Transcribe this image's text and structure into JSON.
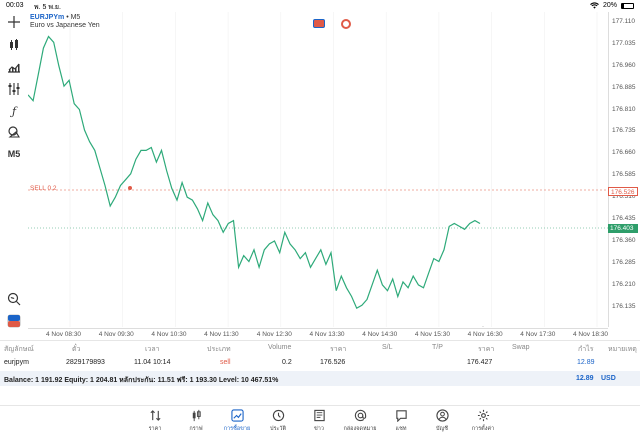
{
  "status_bar": {
    "time": "00:03",
    "date": "พ. 5 พ.ย.",
    "battery": "20%",
    "battery_level": 0.2
  },
  "chart": {
    "symbol": "EURJPYm",
    "timeframe_sep": "•",
    "timeframe": "M5",
    "description": "Euro vs Japanese Yen",
    "sell_label": "SELL 0.2",
    "sell_price": "176.526",
    "bid_price": "176.403",
    "timeframe_button": "M5"
  },
  "chart_data": {
    "type": "line",
    "y_ticks": [
      "177.110",
      "177.035",
      "176.960",
      "176.885",
      "176.810",
      "176.735",
      "176.660",
      "176.585",
      "176.510",
      "176.435",
      "176.360",
      "176.285",
      "176.210",
      "176.135"
    ],
    "x_ticks": [
      "4 Nov 08:30",
      "4 Nov 09:30",
      "4 Nov 10:30",
      "4 Nov 11:30",
      "4 Nov 12:30",
      "4 Nov 13:30",
      "4 Nov 14:30",
      "4 Nov 15:30",
      "4 Nov 16:30",
      "4 Nov 17:30",
      "4 Nov 18:30"
    ],
    "ylim": [
      176.1,
      177.13
    ],
    "series": [
      {
        "color": "#2eaa7a",
        "values": [
          176.86,
          176.84,
          176.93,
          177.02,
          177.06,
          177.04,
          176.96,
          176.89,
          176.91,
          176.83,
          176.81,
          176.74,
          176.7,
          176.67,
          176.61,
          176.55,
          176.48,
          176.51,
          176.55,
          176.57,
          176.59,
          176.64,
          176.67,
          176.67,
          176.68,
          176.63,
          176.67,
          176.6,
          176.54,
          176.5,
          176.56,
          176.51,
          176.5,
          176.47,
          176.43,
          176.49,
          176.45,
          176.43,
          176.39,
          176.42,
          176.43,
          176.27,
          176.31,
          176.29,
          176.33,
          176.27,
          176.33,
          176.35,
          176.36,
          176.32,
          176.39,
          176.35,
          176.33,
          176.3,
          176.32,
          176.27,
          176.3,
          176.33,
          176.28,
          176.32,
          176.19,
          176.24,
          176.2,
          176.17,
          176.13,
          176.14,
          176.16,
          176.21,
          176.26,
          176.21,
          176.19,
          176.23,
          176.17,
          176.22,
          176.2,
          176.24,
          176.21,
          176.2,
          176.25,
          176.3,
          176.29,
          176.33,
          176.41,
          176.42,
          176.41,
          176.4,
          176.42,
          176.43,
          176.42
        ]
      }
    ]
  },
  "table": {
    "headers": {
      "symbol": "สัญลักษณ์",
      "ticket": "ตั๋ว",
      "time": "เวลา",
      "type": "ประเภท",
      "volume": "Volume",
      "price": "ราคา",
      "sl": "S/L",
      "tp": "T/P",
      "current": "ราคา",
      "swap": "Swap",
      "profit": "กำไร",
      "comment": "หมายเหตุ"
    },
    "row": {
      "symbol": "eurjpym",
      "ticket": "2829179893",
      "time": "11.04 10:14",
      "type": "sell",
      "volume": "0.2",
      "price": "176.526",
      "current": "176.427",
      "profit": "12.89"
    },
    "summary": "Balance: 1 191.92 Equity: 1 204.81 หลักประกัน: 11.51 ฟรี: 1 193.30 Level: 10 467.51%",
    "summary_total": "12.89",
    "summary_currency": "USD"
  },
  "tabs": [
    {
      "label": "ราคา",
      "icon": "arrows-icon"
    },
    {
      "label": "กราฟ",
      "icon": "candles-icon"
    },
    {
      "label": "การซื้อขาย",
      "icon": "trade-icon"
    },
    {
      "label": "ประวัติ",
      "icon": "history-icon"
    },
    {
      "label": "ข่าว",
      "icon": "news-icon"
    },
    {
      "label": "กล่องจดหมาย",
      "icon": "mail-icon"
    },
    {
      "label": "แชท",
      "icon": "chat-icon"
    },
    {
      "label": "บัญชี",
      "icon": "account-icon"
    },
    {
      "label": "การตั้งค่า",
      "icon": "settings-icon"
    }
  ]
}
